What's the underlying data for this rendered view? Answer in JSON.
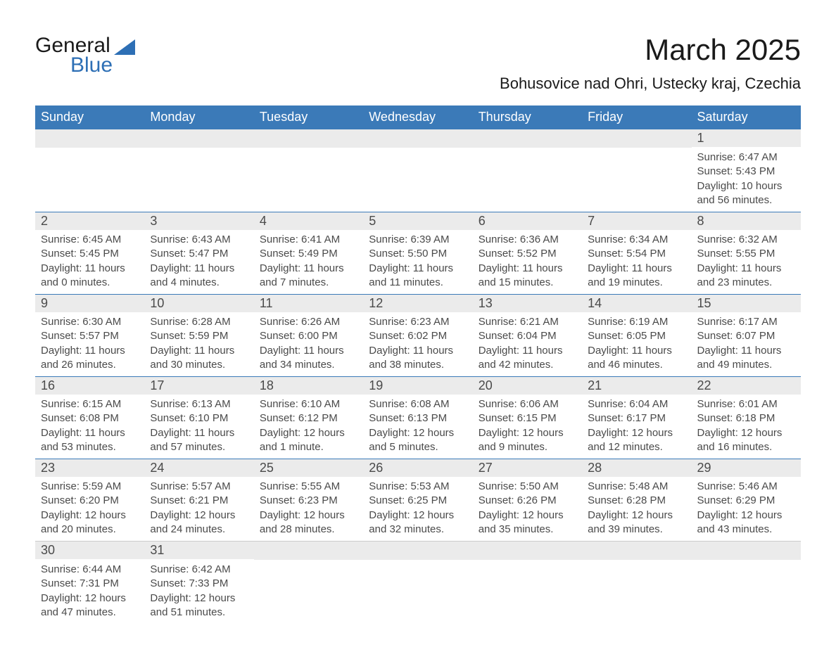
{
  "logo": {
    "text1": "General",
    "text2": "Blue"
  },
  "title": "March 2025",
  "location": "Bohusovice nad Ohri, Ustecky kraj, Czechia",
  "colors": {
    "header_bg": "#3b7ab8",
    "header_text": "#ffffff",
    "daynum_bg": "#ebebeb",
    "row_border": "#3b7ab8",
    "body_text": "#4a4a4a",
    "logo_blue": "#2d6fb5"
  },
  "weekdays": [
    "Sunday",
    "Monday",
    "Tuesday",
    "Wednesday",
    "Thursday",
    "Friday",
    "Saturday"
  ],
  "weeks": [
    [
      null,
      null,
      null,
      null,
      null,
      null,
      {
        "n": "1",
        "sr": "Sunrise: 6:47 AM",
        "ss": "Sunset: 5:43 PM",
        "dl": "Daylight: 10 hours and 56 minutes."
      }
    ],
    [
      {
        "n": "2",
        "sr": "Sunrise: 6:45 AM",
        "ss": "Sunset: 5:45 PM",
        "dl": "Daylight: 11 hours and 0 minutes."
      },
      {
        "n": "3",
        "sr": "Sunrise: 6:43 AM",
        "ss": "Sunset: 5:47 PM",
        "dl": "Daylight: 11 hours and 4 minutes."
      },
      {
        "n": "4",
        "sr": "Sunrise: 6:41 AM",
        "ss": "Sunset: 5:49 PM",
        "dl": "Daylight: 11 hours and 7 minutes."
      },
      {
        "n": "5",
        "sr": "Sunrise: 6:39 AM",
        "ss": "Sunset: 5:50 PM",
        "dl": "Daylight: 11 hours and 11 minutes."
      },
      {
        "n": "6",
        "sr": "Sunrise: 6:36 AM",
        "ss": "Sunset: 5:52 PM",
        "dl": "Daylight: 11 hours and 15 minutes."
      },
      {
        "n": "7",
        "sr": "Sunrise: 6:34 AM",
        "ss": "Sunset: 5:54 PM",
        "dl": "Daylight: 11 hours and 19 minutes."
      },
      {
        "n": "8",
        "sr": "Sunrise: 6:32 AM",
        "ss": "Sunset: 5:55 PM",
        "dl": "Daylight: 11 hours and 23 minutes."
      }
    ],
    [
      {
        "n": "9",
        "sr": "Sunrise: 6:30 AM",
        "ss": "Sunset: 5:57 PM",
        "dl": "Daylight: 11 hours and 26 minutes."
      },
      {
        "n": "10",
        "sr": "Sunrise: 6:28 AM",
        "ss": "Sunset: 5:59 PM",
        "dl": "Daylight: 11 hours and 30 minutes."
      },
      {
        "n": "11",
        "sr": "Sunrise: 6:26 AM",
        "ss": "Sunset: 6:00 PM",
        "dl": "Daylight: 11 hours and 34 minutes."
      },
      {
        "n": "12",
        "sr": "Sunrise: 6:23 AM",
        "ss": "Sunset: 6:02 PM",
        "dl": "Daylight: 11 hours and 38 minutes."
      },
      {
        "n": "13",
        "sr": "Sunrise: 6:21 AM",
        "ss": "Sunset: 6:04 PM",
        "dl": "Daylight: 11 hours and 42 minutes."
      },
      {
        "n": "14",
        "sr": "Sunrise: 6:19 AM",
        "ss": "Sunset: 6:05 PM",
        "dl": "Daylight: 11 hours and 46 minutes."
      },
      {
        "n": "15",
        "sr": "Sunrise: 6:17 AM",
        "ss": "Sunset: 6:07 PM",
        "dl": "Daylight: 11 hours and 49 minutes."
      }
    ],
    [
      {
        "n": "16",
        "sr": "Sunrise: 6:15 AM",
        "ss": "Sunset: 6:08 PM",
        "dl": "Daylight: 11 hours and 53 minutes."
      },
      {
        "n": "17",
        "sr": "Sunrise: 6:13 AM",
        "ss": "Sunset: 6:10 PM",
        "dl": "Daylight: 11 hours and 57 minutes."
      },
      {
        "n": "18",
        "sr": "Sunrise: 6:10 AM",
        "ss": "Sunset: 6:12 PM",
        "dl": "Daylight: 12 hours and 1 minute."
      },
      {
        "n": "19",
        "sr": "Sunrise: 6:08 AM",
        "ss": "Sunset: 6:13 PM",
        "dl": "Daylight: 12 hours and 5 minutes."
      },
      {
        "n": "20",
        "sr": "Sunrise: 6:06 AM",
        "ss": "Sunset: 6:15 PM",
        "dl": "Daylight: 12 hours and 9 minutes."
      },
      {
        "n": "21",
        "sr": "Sunrise: 6:04 AM",
        "ss": "Sunset: 6:17 PM",
        "dl": "Daylight: 12 hours and 12 minutes."
      },
      {
        "n": "22",
        "sr": "Sunrise: 6:01 AM",
        "ss": "Sunset: 6:18 PM",
        "dl": "Daylight: 12 hours and 16 minutes."
      }
    ],
    [
      {
        "n": "23",
        "sr": "Sunrise: 5:59 AM",
        "ss": "Sunset: 6:20 PM",
        "dl": "Daylight: 12 hours and 20 minutes."
      },
      {
        "n": "24",
        "sr": "Sunrise: 5:57 AM",
        "ss": "Sunset: 6:21 PM",
        "dl": "Daylight: 12 hours and 24 minutes."
      },
      {
        "n": "25",
        "sr": "Sunrise: 5:55 AM",
        "ss": "Sunset: 6:23 PM",
        "dl": "Daylight: 12 hours and 28 minutes."
      },
      {
        "n": "26",
        "sr": "Sunrise: 5:53 AM",
        "ss": "Sunset: 6:25 PM",
        "dl": "Daylight: 12 hours and 32 minutes."
      },
      {
        "n": "27",
        "sr": "Sunrise: 5:50 AM",
        "ss": "Sunset: 6:26 PM",
        "dl": "Daylight: 12 hours and 35 minutes."
      },
      {
        "n": "28",
        "sr": "Sunrise: 5:48 AM",
        "ss": "Sunset: 6:28 PM",
        "dl": "Daylight: 12 hours and 39 minutes."
      },
      {
        "n": "29",
        "sr": "Sunrise: 5:46 AM",
        "ss": "Sunset: 6:29 PM",
        "dl": "Daylight: 12 hours and 43 minutes."
      }
    ],
    [
      {
        "n": "30",
        "sr": "Sunrise: 6:44 AM",
        "ss": "Sunset: 7:31 PM",
        "dl": "Daylight: 12 hours and 47 minutes."
      },
      {
        "n": "31",
        "sr": "Sunrise: 6:42 AM",
        "ss": "Sunset: 7:33 PM",
        "dl": "Daylight: 12 hours and 51 minutes."
      },
      null,
      null,
      null,
      null,
      null
    ]
  ]
}
